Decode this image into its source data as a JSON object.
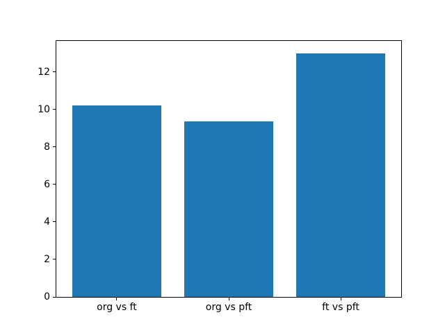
{
  "chart_data": {
    "type": "bar",
    "title": "",
    "xlabel": "",
    "ylabel": "",
    "categories": [
      "org vs ft",
      "org vs pft",
      "ft vs pft"
    ],
    "values": [
      10.2,
      9.35,
      13.0
    ],
    "yticks": [
      0,
      2,
      4,
      6,
      8,
      10,
      12
    ],
    "ylim": [
      0,
      13.65
    ],
    "xlim": [
      -0.54,
      2.54
    ],
    "bar_width_fraction": 0.8,
    "bar_color": "#1f77b4",
    "axis_color": "#000000",
    "background_color": "#ffffff",
    "grid": false,
    "legend_position": "none"
  }
}
